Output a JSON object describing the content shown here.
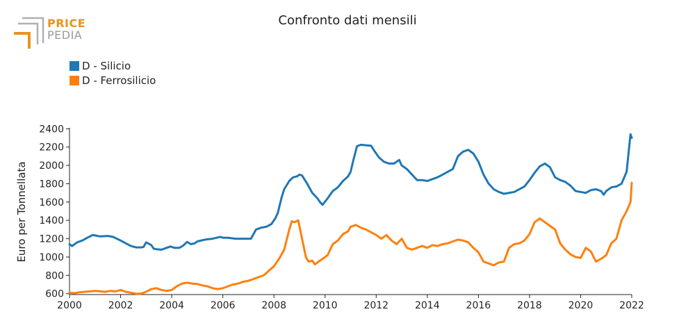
{
  "logo": {
    "line1": "PRICE",
    "line2": "PEDIA"
  },
  "chart_data": {
    "type": "line",
    "title": "Confronto dati mensili",
    "ylabel": "Euro per Tonnellata",
    "xlabel": "",
    "xlim": [
      2000,
      2022
    ],
    "ylim": [
      590,
      2410
    ],
    "x_ticks": [
      "2000",
      "2002",
      "2004",
      "2006",
      "2008",
      "2010",
      "2012",
      "2014",
      "2016",
      "2018",
      "2020",
      "2022"
    ],
    "y_ticks": [
      "600",
      "800",
      "1000",
      "1200",
      "1400",
      "1600",
      "1800",
      "2000",
      "2200",
      "2400"
    ],
    "legend_position": "top-left",
    "series": [
      {
        "name": "D - Silicio",
        "color": "#1f77b4",
        "x": [
          2000.0,
          2000.1,
          2000.3,
          2000.5,
          2000.7,
          2000.9,
          2001.0,
          2001.2,
          2001.5,
          2001.7,
          2002.0,
          2002.2,
          2002.4,
          2002.6,
          2002.8,
          2002.9,
          2003.0,
          2003.2,
          2003.3,
          2003.4,
          2003.6,
          2003.8,
          2003.95,
          2004.1,
          2004.3,
          2004.45,
          2004.6,
          2004.75,
          2004.9,
          2005.0,
          2005.3,
          2005.6,
          2005.9,
          2006.0,
          2006.2,
          2006.5,
          2006.8,
          2006.95,
          2007.1,
          2007.3,
          2007.5,
          2007.7,
          2007.9,
          2008.05,
          2008.15,
          2008.3,
          2008.4,
          2008.6,
          2008.75,
          2008.9,
          2009.0,
          2009.1,
          2009.3,
          2009.5,
          2009.7,
          2009.8,
          2009.9,
          2010.1,
          2010.3,
          2010.5,
          2010.7,
          2010.9,
          2011.0,
          2011.1,
          2011.25,
          2011.4,
          2011.6,
          2011.8,
          2011.9,
          2012.1,
          2012.3,
          2012.5,
          2012.7,
          2012.9,
          2013.0,
          2013.2,
          2013.4,
          2013.6,
          2013.8,
          2014.0,
          2014.2,
          2014.4,
          2014.6,
          2014.8,
          2015.0,
          2015.2,
          2015.4,
          2015.6,
          2015.8,
          2016.0,
          2016.2,
          2016.4,
          2016.6,
          2016.8,
          2017.0,
          2017.2,
          2017.4,
          2017.6,
          2017.8,
          2018.0,
          2018.2,
          2018.4,
          2018.6,
          2018.8,
          2019.0,
          2019.2,
          2019.4,
          2019.6,
          2019.8,
          2020.0,
          2020.2,
          2020.4,
          2020.6,
          2020.8,
          2020.9,
          2021.0,
          2021.2,
          2021.4,
          2021.6,
          2021.8,
          2021.95,
          2022.0
        ],
        "values": [
          1140,
          1120,
          1160,
          1180,
          1210,
          1240,
          1235,
          1225,
          1230,
          1220,
          1180,
          1150,
          1120,
          1105,
          1105,
          1110,
          1160,
          1130,
          1090,
          1085,
          1080,
          1100,
          1115,
          1100,
          1100,
          1125,
          1165,
          1140,
          1150,
          1170,
          1190,
          1200,
          1220,
          1210,
          1210,
          1200,
          1200,
          1200,
          1200,
          1300,
          1320,
          1330,
          1360,
          1420,
          1480,
          1650,
          1740,
          1830,
          1870,
          1880,
          1900,
          1890,
          1800,
          1700,
          1640,
          1600,
          1570,
          1640,
          1720,
          1760,
          1830,
          1880,
          1930,
          2050,
          2210,
          2225,
          2220,
          2215,
          2170,
          2090,
          2040,
          2020,
          2020,
          2060,
          2000,
          1960,
          1900,
          1840,
          1840,
          1830,
          1850,
          1870,
          1900,
          1930,
          1960,
          2100,
          2150,
          2170,
          2130,
          2040,
          1900,
          1800,
          1740,
          1710,
          1690,
          1700,
          1710,
          1740,
          1770,
          1840,
          1920,
          1990,
          2020,
          1980,
          1870,
          1840,
          1820,
          1780,
          1720,
          1710,
          1700,
          1730,
          1740,
          1720,
          1680,
          1720,
          1760,
          1770,
          1800,
          1930,
          2340,
          2300
        ]
      },
      {
        "name": "D - Ferrosilicio",
        "color": "#ff7f0e",
        "x": [
          2000.0,
          2000.2,
          2000.4,
          2000.6,
          2000.8,
          2001.0,
          2001.2,
          2001.4,
          2001.6,
          2001.8,
          2002.0,
          2002.2,
          2002.4,
          2002.6,
          2002.8,
          2003.0,
          2003.2,
          2003.4,
          2003.6,
          2003.8,
          2004.0,
          2004.2,
          2004.4,
          2004.6,
          2004.8,
          2005.0,
          2005.2,
          2005.4,
          2005.6,
          2005.8,
          2006.0,
          2006.2,
          2006.4,
          2006.6,
          2006.8,
          2007.0,
          2007.2,
          2007.4,
          2007.6,
          2007.8,
          2008.0,
          2008.2,
          2008.4,
          2008.6,
          2008.7,
          2008.8,
          2008.95,
          2009.1,
          2009.25,
          2009.35,
          2009.5,
          2009.6,
          2009.75,
          2009.9,
          2010.1,
          2010.3,
          2010.5,
          2010.7,
          2010.9,
          2011.0,
          2011.2,
          2011.4,
          2011.6,
          2011.8,
          2012.0,
          2012.2,
          2012.4,
          2012.6,
          2012.8,
          2013.0,
          2013.2,
          2013.4,
          2013.6,
          2013.8,
          2014.0,
          2014.2,
          2014.4,
          2014.6,
          2014.8,
          2015.0,
          2015.2,
          2015.4,
          2015.6,
          2015.8,
          2016.0,
          2016.2,
          2016.4,
          2016.6,
          2016.8,
          2017.0,
          2017.2,
          2017.4,
          2017.6,
          2017.8,
          2018.0,
          2018.2,
          2018.4,
          2018.6,
          2018.8,
          2019.0,
          2019.2,
          2019.4,
          2019.6,
          2019.8,
          2020.0,
          2020.2,
          2020.4,
          2020.6,
          2020.8,
          2021.0,
          2021.2,
          2021.4,
          2021.6,
          2021.8,
          2021.95,
          2022.0
        ],
        "values": [
          610,
          605,
          615,
          620,
          625,
          630,
          625,
          620,
          630,
          625,
          640,
          620,
          610,
          600,
          600,
          620,
          650,
          660,
          640,
          630,
          640,
          680,
          710,
          720,
          710,
          705,
          690,
          680,
          660,
          650,
          660,
          680,
          700,
          710,
          730,
          740,
          760,
          780,
          800,
          850,
          900,
          980,
          1080,
          1300,
          1390,
          1380,
          1400,
          1200,
          1000,
          950,
          960,
          920,
          950,
          980,
          1020,
          1140,
          1180,
          1250,
          1280,
          1330,
          1350,
          1320,
          1300,
          1270,
          1240,
          1200,
          1240,
          1180,
          1140,
          1200,
          1100,
          1080,
          1100,
          1120,
          1100,
          1130,
          1120,
          1140,
          1150,
          1170,
          1190,
          1180,
          1160,
          1100,
          1050,
          950,
          930,
          910,
          940,
          950,
          1100,
          1140,
          1150,
          1180,
          1250,
          1380,
          1420,
          1380,
          1340,
          1300,
          1150,
          1080,
          1030,
          1000,
          990,
          1100,
          1060,
          950,
          980,
          1020,
          1150,
          1200,
          1400,
          1500,
          1600,
          1810
        ]
      }
    ]
  }
}
